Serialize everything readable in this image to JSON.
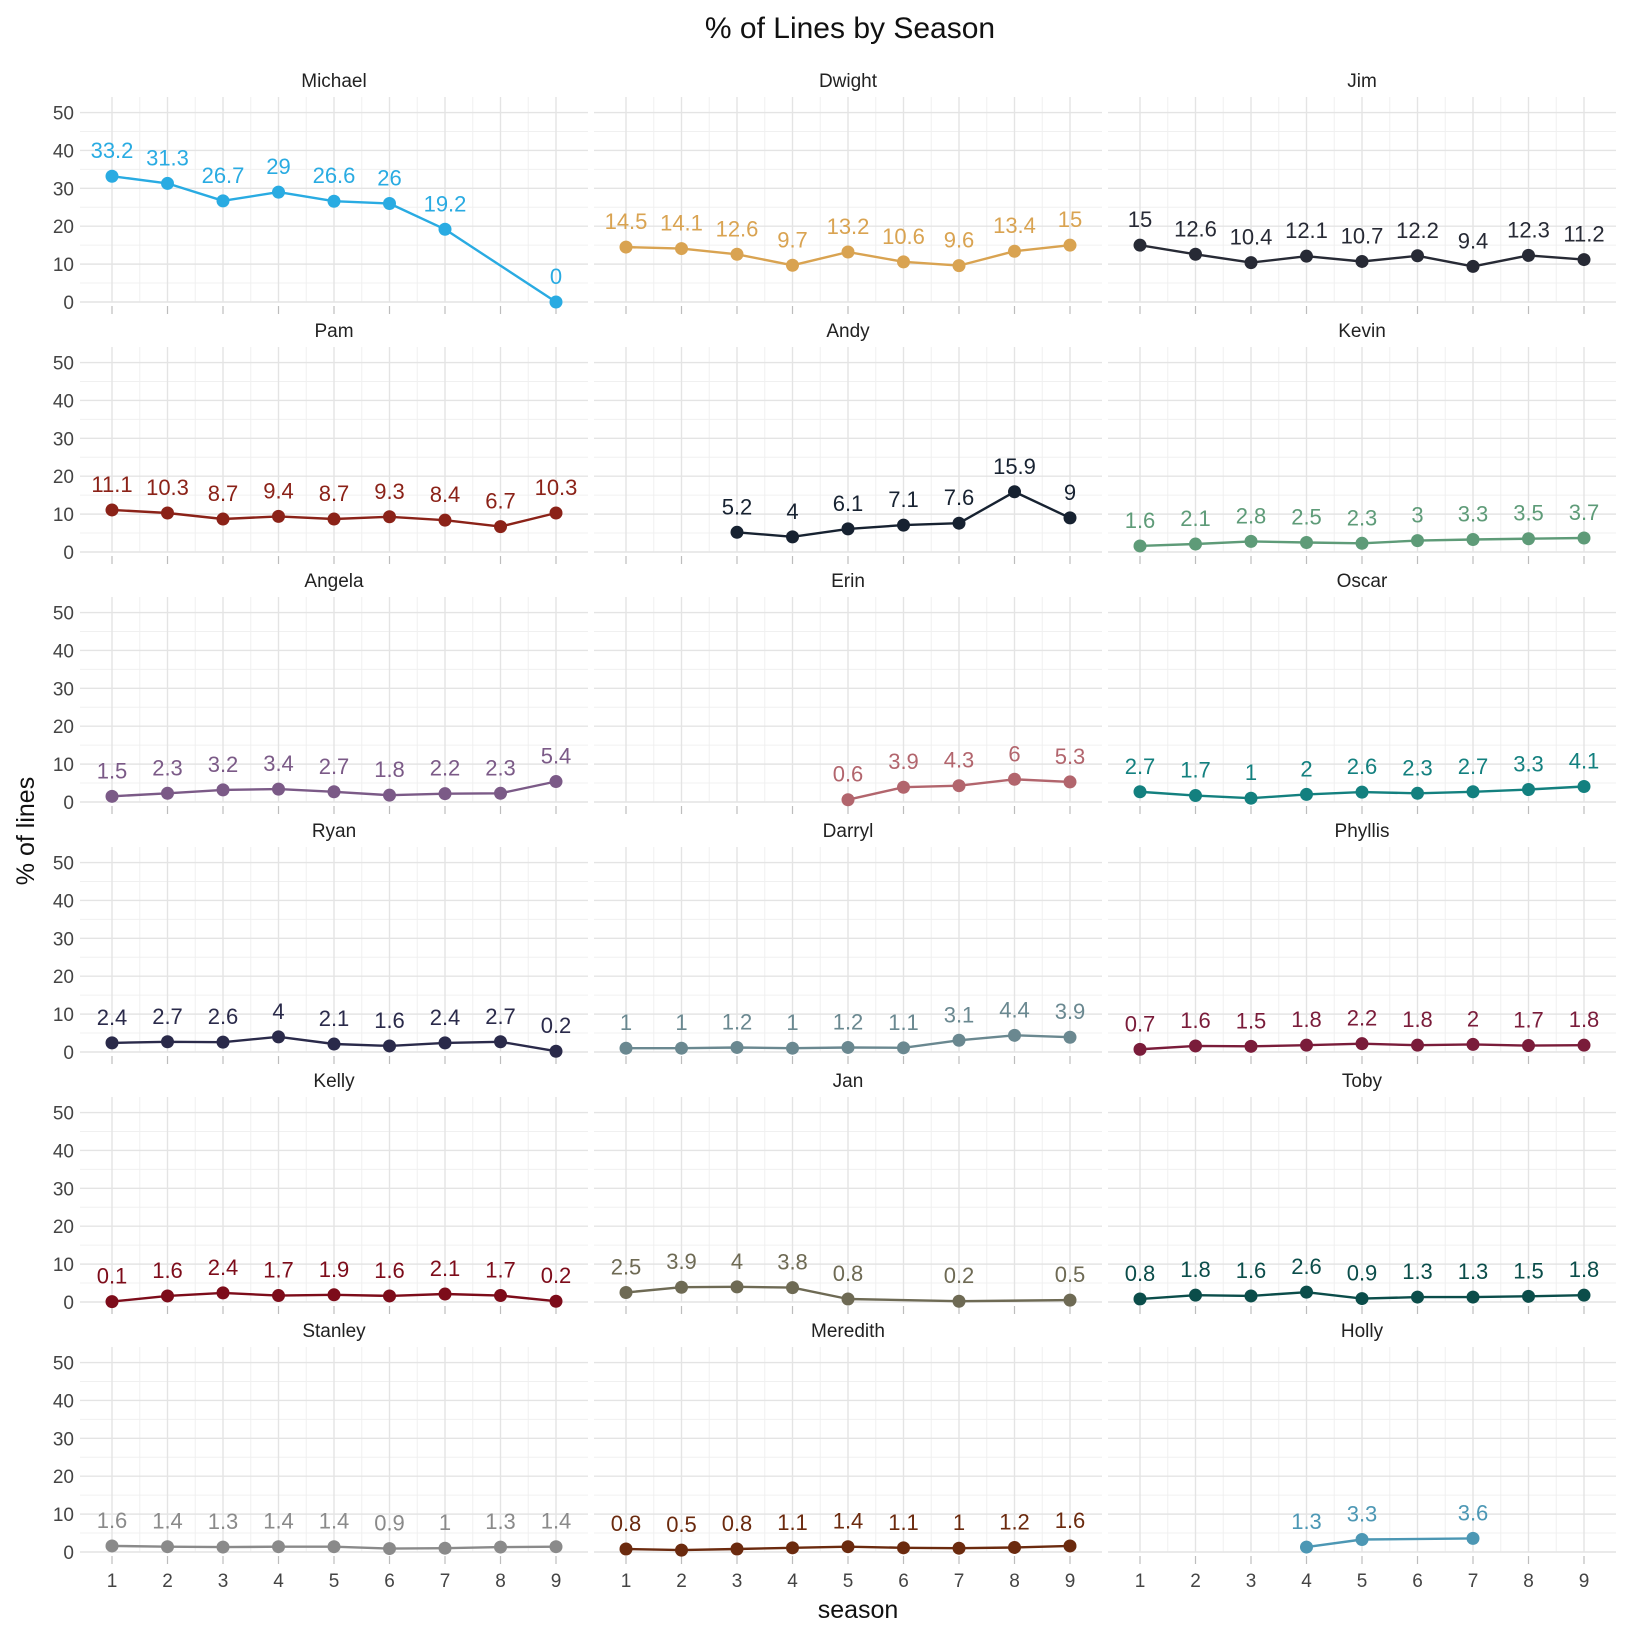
{
  "chart_data": {
    "type": "line",
    "title": "% of Lines by Season",
    "xlabel": "season",
    "ylabel": "% of lines",
    "x": [
      1,
      2,
      3,
      4,
      5,
      6,
      7,
      8,
      9
    ],
    "ylim": [
      0,
      52
    ],
    "y_ticks": [
      0,
      10,
      20,
      30,
      40,
      50
    ],
    "x_ticks": [
      1,
      2,
      3,
      4,
      5,
      6,
      7,
      8,
      9
    ],
    "grid": true,
    "legend": "none",
    "facet_layout": "6 rows x 3 columns, shared axes",
    "series": [
      {
        "name": "Michael",
        "color": "#29abe2",
        "points": [
          [
            1,
            33.2
          ],
          [
            2,
            31.3
          ],
          [
            3,
            26.7
          ],
          [
            4,
            29
          ],
          [
            5,
            26.6
          ],
          [
            6,
            26
          ],
          [
            7,
            19.2
          ],
          [
            9,
            0
          ]
        ]
      },
      {
        "name": "Dwight",
        "color": "#d9a351",
        "points": [
          [
            1,
            14.5
          ],
          [
            2,
            14.1
          ],
          [
            3,
            12.6
          ],
          [
            4,
            9.7
          ],
          [
            5,
            13.2
          ],
          [
            6,
            10.6
          ],
          [
            7,
            9.6
          ],
          [
            8,
            13.4
          ],
          [
            9,
            15
          ]
        ]
      },
      {
        "name": "Jim",
        "color": "#272a35",
        "points": [
          [
            1,
            15
          ],
          [
            2,
            12.6
          ],
          [
            3,
            10.4
          ],
          [
            4,
            12.1
          ],
          [
            5,
            10.7
          ],
          [
            6,
            12.2
          ],
          [
            7,
            9.4
          ],
          [
            8,
            12.3
          ],
          [
            9,
            11.2
          ]
        ]
      },
      {
        "name": "Pam",
        "color": "#8b2218",
        "points": [
          [
            1,
            11.1
          ],
          [
            2,
            10.3
          ],
          [
            3,
            8.7
          ],
          [
            4,
            9.4
          ],
          [
            5,
            8.7
          ],
          [
            6,
            9.3
          ],
          [
            7,
            8.4
          ],
          [
            8,
            6.7
          ],
          [
            9,
            10.3
          ]
        ]
      },
      {
        "name": "Andy",
        "color": "#172231",
        "points": [
          [
            3,
            5.2
          ],
          [
            4,
            4
          ],
          [
            5,
            6.1
          ],
          [
            6,
            7.1
          ],
          [
            7,
            7.6
          ],
          [
            8,
            15.9
          ],
          [
            9,
            9
          ]
        ]
      },
      {
        "name": "Kevin",
        "color": "#5e9b78",
        "points": [
          [
            1,
            1.6
          ],
          [
            2,
            2.1
          ],
          [
            3,
            2.8
          ],
          [
            4,
            2.5
          ],
          [
            5,
            2.3
          ],
          [
            6,
            3
          ],
          [
            7,
            3.3
          ],
          [
            8,
            3.5
          ],
          [
            9,
            3.7
          ]
        ]
      },
      {
        "name": "Angela",
        "color": "#7b5a87",
        "points": [
          [
            1,
            1.5
          ],
          [
            2,
            2.3
          ],
          [
            3,
            3.2
          ],
          [
            4,
            3.4
          ],
          [
            5,
            2.7
          ],
          [
            6,
            1.8
          ],
          [
            7,
            2.2
          ],
          [
            8,
            2.3
          ],
          [
            9,
            5.4
          ]
        ]
      },
      {
        "name": "Erin",
        "color": "#b2656d",
        "points": [
          [
            5,
            0.6
          ],
          [
            6,
            3.9
          ],
          [
            7,
            4.3
          ],
          [
            8,
            6
          ],
          [
            9,
            5.3
          ]
        ]
      },
      {
        "name": "Oscar",
        "color": "#13807f",
        "points": [
          [
            1,
            2.7
          ],
          [
            2,
            1.7
          ],
          [
            3,
            1
          ],
          [
            4,
            2
          ],
          [
            5,
            2.6
          ],
          [
            6,
            2.3
          ],
          [
            7,
            2.7
          ],
          [
            8,
            3.3
          ],
          [
            9,
            4.1
          ]
        ]
      },
      {
        "name": "Ryan",
        "color": "#2a2a4a",
        "points": [
          [
            1,
            2.4
          ],
          [
            2,
            2.7
          ],
          [
            3,
            2.6
          ],
          [
            4,
            4
          ],
          [
            5,
            2.1
          ],
          [
            6,
            1.6
          ],
          [
            7,
            2.4
          ],
          [
            8,
            2.7
          ],
          [
            9,
            0.2
          ]
        ]
      },
      {
        "name": "Darryl",
        "color": "#6a8890",
        "points": [
          [
            1,
            1
          ],
          [
            2,
            1
          ],
          [
            3,
            1.2
          ],
          [
            4,
            1
          ],
          [
            5,
            1.2
          ],
          [
            6,
            1.1
          ],
          [
            7,
            3.1
          ],
          [
            8,
            4.4
          ],
          [
            9,
            3.9
          ]
        ]
      },
      {
        "name": "Phyllis",
        "color": "#7a1c3a",
        "points": [
          [
            1,
            0.7
          ],
          [
            2,
            1.6
          ],
          [
            3,
            1.5
          ],
          [
            4,
            1.8
          ],
          [
            5,
            2.2
          ],
          [
            6,
            1.8
          ],
          [
            7,
            2
          ],
          [
            8,
            1.7
          ],
          [
            9,
            1.8
          ]
        ]
      },
      {
        "name": "Kelly",
        "color": "#7d0c1a",
        "points": [
          [
            1,
            0.1
          ],
          [
            2,
            1.6
          ],
          [
            3,
            2.4
          ],
          [
            4,
            1.7
          ],
          [
            5,
            1.9
          ],
          [
            6,
            1.6
          ],
          [
            7,
            2.1
          ],
          [
            8,
            1.7
          ],
          [
            9,
            0.2
          ]
        ]
      },
      {
        "name": "Jan",
        "color": "#6e6a54",
        "points": [
          [
            1,
            2.5
          ],
          [
            2,
            3.9
          ],
          [
            3,
            4
          ],
          [
            4,
            3.8
          ],
          [
            5,
            0.8
          ],
          [
            7,
            0.2
          ],
          [
            9,
            0.5
          ]
        ]
      },
      {
        "name": "Toby",
        "color": "#0b4d4a",
        "points": [
          [
            1,
            0.8
          ],
          [
            2,
            1.8
          ],
          [
            3,
            1.6
          ],
          [
            4,
            2.6
          ],
          [
            5,
            0.9
          ],
          [
            6,
            1.3
          ],
          [
            7,
            1.3
          ],
          [
            8,
            1.5
          ],
          [
            9,
            1.8
          ]
        ]
      },
      {
        "name": "Stanley",
        "color": "#8a8a8a",
        "points": [
          [
            1,
            1.6
          ],
          [
            2,
            1.4
          ],
          [
            3,
            1.3
          ],
          [
            4,
            1.4
          ],
          [
            5,
            1.4
          ],
          [
            6,
            0.9
          ],
          [
            7,
            1
          ],
          [
            8,
            1.3
          ],
          [
            9,
            1.4
          ]
        ]
      },
      {
        "name": "Meredith",
        "color": "#6b2a0e",
        "points": [
          [
            1,
            0.8
          ],
          [
            2,
            0.5
          ],
          [
            3,
            0.8
          ],
          [
            4,
            1.1
          ],
          [
            5,
            1.4
          ],
          [
            6,
            1.1
          ],
          [
            7,
            1
          ],
          [
            8,
            1.2
          ],
          [
            9,
            1.6
          ]
        ]
      },
      {
        "name": "Holly",
        "color": "#4c97b4",
        "points": [
          [
            4,
            1.3
          ],
          [
            5,
            3.3
          ],
          [
            7,
            3.6
          ]
        ]
      }
    ]
  }
}
